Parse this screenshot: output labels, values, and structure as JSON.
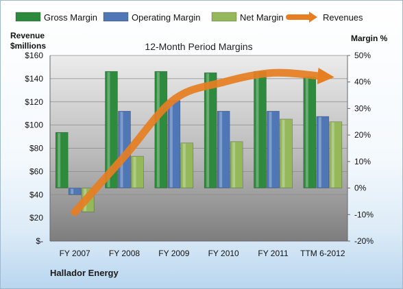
{
  "chart_data": {
    "type": "bar",
    "title": "12-Month Period Margins",
    "categories": [
      "FY 2007",
      "FY 2008",
      "FY 2009",
      "FY 2010",
      "FY 2011",
      "TTM 6-2012"
    ],
    "ylabel": "Revenue $millions",
    "y2label": "Margin %",
    "ylim": [
      0,
      160
    ],
    "y2lim": [
      -20,
      50
    ],
    "yticks": [
      "$-",
      "$20",
      "$40",
      "$60",
      "$80",
      "$100",
      "$120",
      "$140",
      "$160"
    ],
    "y2ticks": [
      "-20%",
      "-10%",
      "0%",
      "10%",
      "20%",
      "30%",
      "40%",
      "50%"
    ],
    "legend_position": "top",
    "grid": true,
    "series": [
      {
        "name": "Gross Margin",
        "axis": "right",
        "color": "#2e8b3e",
        "values": [
          21,
          44,
          44,
          43.5,
          44,
          42
        ]
      },
      {
        "name": "Operating Margin",
        "axis": "right",
        "color": "#4f76b5",
        "values": [
          -2.5,
          29,
          33,
          29,
          29,
          27
        ]
      },
      {
        "name": "Net Margin",
        "axis": "right",
        "color": "#94b85a",
        "values": [
          -9,
          12,
          17,
          17.5,
          26,
          25
        ]
      },
      {
        "name": "Revenues",
        "type": "line",
        "axis": "left",
        "color": "#e67e22",
        "values": [
          25,
          73,
          122,
          137,
          145,
          142
        ]
      }
    ]
  },
  "footer": {
    "company": "Hallador Energy"
  }
}
